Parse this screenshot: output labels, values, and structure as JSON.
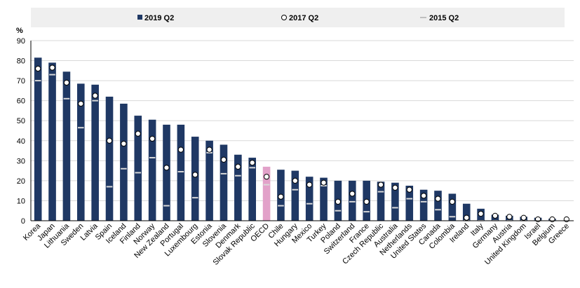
{
  "chart_data": {
    "type": "bar",
    "ylabel": "%",
    "ylim": [
      0,
      90
    ],
    "yticks": [
      0,
      10,
      20,
      30,
      40,
      50,
      60,
      70,
      80,
      90
    ],
    "grid": "horizontal",
    "legend_position": "top",
    "highlight_category": "OECD",
    "colors": {
      "bar": "#1f3864",
      "highlight_bar": "#e2a1c9",
      "marker_2017_fill": "#ffffff",
      "marker_2017_stroke": "#000000",
      "marker_2015": "#d9d9d9",
      "grid": "#d9d9d9",
      "legend_bg": "#efefef"
    },
    "categories": [
      "Korea",
      "Japan",
      "Lithuania",
      "Sweden",
      "Latvia",
      "Spain",
      "Iceland",
      "Finland",
      "Norway",
      "New Zealand",
      "Portugal",
      "Luxembourg",
      "Estonia",
      "Slovenia",
      "Denmark",
      "Slovak Republic",
      "OECD",
      "Chile",
      "Hungary",
      "Mexico",
      "Turkey",
      "Poland",
      "Switzerland",
      "France",
      "Czech Republic",
      "Australia",
      "Netherlands",
      "United States",
      "Canada",
      "Colombia",
      "Ireland",
      "Italy",
      "Germany",
      "Austria",
      "United Kingdom",
      "Israel",
      "Belgium",
      "Greece"
    ],
    "series": [
      {
        "name": "2019 Q2",
        "kind": "bar",
        "values": [
          81.5,
          79,
          74.5,
          68.5,
          68,
          62,
          58.5,
          52.5,
          50.5,
          48,
          48,
          42,
          40,
          38,
          33,
          31.5,
          27,
          25.5,
          25,
          22,
          21.5,
          20,
          20,
          20,
          19.5,
          19,
          17.5,
          15.5,
          15,
          13.5,
          8.5,
          6,
          3,
          2.5,
          2,
          1.5,
          1,
          0
        ]
      },
      {
        "name": "2017 Q2",
        "kind": "circle",
        "values": [
          76,
          76.5,
          69,
          58.5,
          62.5,
          40,
          38.5,
          43.5,
          41,
          26.5,
          35.5,
          23,
          35.5,
          30.5,
          27,
          29,
          22,
          12,
          20,
          18,
          19,
          9.5,
          13.5,
          9.5,
          18,
          16.5,
          15.5,
          12.5,
          11,
          9.5,
          1.5,
          3.5,
          2.5,
          2,
          1.5,
          0.5,
          0.5,
          0
        ]
      },
      {
        "name": "2015 Q2",
        "kind": "dash",
        "values": [
          70,
          73,
          61,
          46.5,
          60,
          17,
          26,
          24,
          31.5,
          7.5,
          24.5,
          11.5,
          34,
          23.5,
          22.5,
          26.5,
          18,
          7.5,
          15.5,
          8.5,
          17.5,
          5,
          9.5,
          4.5,
          14.5,
          6.5,
          11,
          9.5,
          5.5,
          2,
          0,
          0,
          0,
          0,
          0,
          0,
          0,
          0
        ]
      }
    ]
  }
}
